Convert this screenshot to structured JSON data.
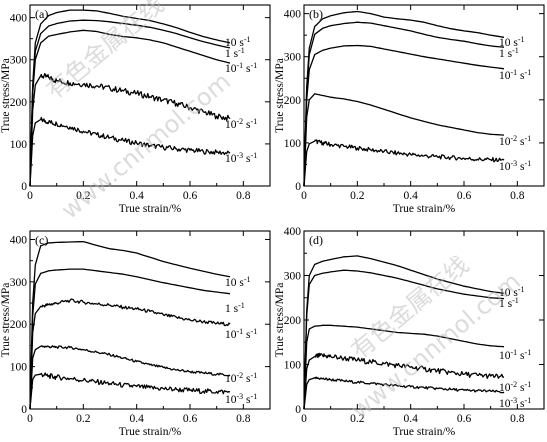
{
  "chart_data": [
    {
      "type": "line",
      "panel_label": "(a)",
      "xlabel": "True strain/%",
      "ylabel": "True stress/MPa",
      "xlim": [
        0,
        0.9
      ],
      "ylim": [
        0,
        430
      ],
      "xticks": [
        "0",
        "0.2",
        "0.4",
        "0.6",
        "0.8"
      ],
      "yticks": [
        "0",
        "100",
        "200",
        "300",
        "400"
      ],
      "series": [
        {
          "name": "10 s⁻¹",
          "label_base": "10 s",
          "label_exp": "-1",
          "serration": 0,
          "x": [
            0,
            0.01,
            0.02,
            0.04,
            0.07,
            0.1,
            0.15,
            0.2,
            0.25,
            0.3,
            0.35,
            0.4,
            0.45,
            0.5,
            0.55,
            0.6,
            0.65,
            0.7,
            0.75
          ],
          "y": [
            0,
            240,
            340,
            385,
            405,
            412,
            418,
            418,
            416,
            410,
            403,
            398,
            393,
            385,
            376,
            365,
            355,
            347,
            340
          ]
        },
        {
          "name": "1 s⁻¹",
          "label_base": "1 s",
          "label_exp": "-1",
          "serration": 0,
          "x": [
            0,
            0.01,
            0.02,
            0.04,
            0.07,
            0.1,
            0.15,
            0.2,
            0.25,
            0.3,
            0.35,
            0.4,
            0.45,
            0.5,
            0.55,
            0.6,
            0.65,
            0.7,
            0.75
          ],
          "y": [
            0,
            230,
            320,
            362,
            380,
            386,
            392,
            394,
            393,
            390,
            386,
            382,
            377,
            370,
            362,
            352,
            343,
            335,
            328
          ]
        },
        {
          "name": "10⁻¹ s⁻¹",
          "label_base": "10",
          "label_exp": "-1",
          "label_unit": " s",
          "label_exp2": "-1",
          "serration": 0,
          "x": [
            0,
            0.01,
            0.02,
            0.04,
            0.07,
            0.1,
            0.15,
            0.2,
            0.25,
            0.3,
            0.35,
            0.4,
            0.45,
            0.5,
            0.55,
            0.6,
            0.65,
            0.7,
            0.75
          ],
          "y": [
            0,
            220,
            300,
            340,
            356,
            360,
            366,
            370,
            367,
            360,
            355,
            352,
            347,
            340,
            330,
            320,
            310,
            300,
            292
          ]
        },
        {
          "name": "10⁻² s⁻¹",
          "label_base": "10",
          "label_exp": "-2",
          "label_unit": " s",
          "label_exp2": "-1",
          "serration": 7,
          "x": [
            0,
            0.01,
            0.02,
            0.04,
            0.07,
            0.1,
            0.15,
            0.2,
            0.25,
            0.3,
            0.35,
            0.4,
            0.45,
            0.5,
            0.55,
            0.6,
            0.65,
            0.7,
            0.75
          ],
          "y": [
            0,
            180,
            240,
            262,
            258,
            250,
            245,
            242,
            238,
            232,
            226,
            220,
            212,
            204,
            196,
            186,
            176,
            166,
            160
          ]
        },
        {
          "name": "10⁻³ s⁻¹",
          "label_base": "10",
          "label_exp": "-3",
          "label_unit": " s",
          "label_exp2": "-1",
          "serration": 6,
          "x": [
            0,
            0.01,
            0.02,
            0.04,
            0.07,
            0.1,
            0.15,
            0.2,
            0.25,
            0.3,
            0.35,
            0.4,
            0.45,
            0.5,
            0.55,
            0.6,
            0.65,
            0.7,
            0.75
          ],
          "y": [
            0,
            120,
            150,
            158,
            152,
            148,
            140,
            130,
            122,
            115,
            108,
            102,
            96,
            92,
            88,
            85,
            82,
            80,
            78
          ]
        }
      ]
    },
    {
      "type": "line",
      "panel_label": "(b)",
      "xlabel": "True strain/%",
      "ylabel": "True stress/MPa",
      "xlim": [
        0,
        0.9
      ],
      "ylim": [
        0,
        420
      ],
      "xticks": [
        "0",
        "0.2",
        "0.4",
        "0.6",
        "0.8"
      ],
      "yticks": [
        "0",
        "100",
        "200",
        "300",
        "400"
      ],
      "series": [
        {
          "name": "10 s⁻¹",
          "label_base": "10 s",
          "label_exp": "-1",
          "serration": 0,
          "x": [
            0,
            0.01,
            0.02,
            0.04,
            0.07,
            0.1,
            0.15,
            0.2,
            0.25,
            0.3,
            0.35,
            0.4,
            0.45,
            0.5,
            0.55,
            0.6,
            0.65,
            0.7,
            0.75
          ],
          "y": [
            0,
            230,
            320,
            370,
            388,
            395,
            402,
            405,
            400,
            392,
            388,
            385,
            380,
            372,
            365,
            360,
            356,
            350,
            345
          ]
        },
        {
          "name": "1 s⁻¹",
          "label_base": "1 s",
          "label_exp": "-1",
          "serration": 0,
          "x": [
            0,
            0.01,
            0.02,
            0.04,
            0.07,
            0.1,
            0.15,
            0.2,
            0.25,
            0.3,
            0.35,
            0.4,
            0.45,
            0.5,
            0.55,
            0.6,
            0.65,
            0.7,
            0.75
          ],
          "y": [
            0,
            220,
            305,
            352,
            366,
            372,
            377,
            380,
            378,
            372,
            366,
            360,
            352,
            345,
            340,
            336,
            330,
            325,
            322
          ]
        },
        {
          "name": "10⁻¹ s⁻¹",
          "label_base": "10",
          "label_exp": "-1",
          "label_unit": " s",
          "label_exp2": "-1",
          "serration": 0,
          "x": [
            0,
            0.01,
            0.02,
            0.04,
            0.07,
            0.1,
            0.15,
            0.2,
            0.25,
            0.3,
            0.35,
            0.4,
            0.45,
            0.5,
            0.55,
            0.6,
            0.65,
            0.7,
            0.75
          ],
          "y": [
            0,
            200,
            270,
            305,
            315,
            320,
            325,
            326,
            324,
            318,
            312,
            306,
            300,
            295,
            290,
            285,
            280,
            276,
            272
          ]
        },
        {
          "name": "10⁻² s⁻¹",
          "label_base": "10",
          "label_exp": "-2",
          "label_unit": " s",
          "label_exp2": "-1",
          "serration": 0,
          "x": [
            0,
            0.01,
            0.02,
            0.04,
            0.07,
            0.1,
            0.15,
            0.2,
            0.25,
            0.3,
            0.35,
            0.4,
            0.45,
            0.5,
            0.55,
            0.6,
            0.65,
            0.7,
            0.75
          ],
          "y": [
            0,
            160,
            200,
            214,
            210,
            206,
            202,
            196,
            188,
            178,
            168,
            158,
            150,
            142,
            136,
            130,
            124,
            120,
            118
          ]
        },
        {
          "name": "10⁻³ s⁻¹",
          "label_base": "10",
          "label_exp": "-3",
          "label_unit": " s",
          "label_exp2": "-1",
          "serration": 5,
          "x": [
            0,
            0.01,
            0.02,
            0.04,
            0.07,
            0.1,
            0.15,
            0.2,
            0.25,
            0.3,
            0.35,
            0.4,
            0.45,
            0.5,
            0.55,
            0.6,
            0.65,
            0.7,
            0.75
          ],
          "y": [
            0,
            80,
            98,
            104,
            100,
            96,
            92,
            88,
            84,
            80,
            76,
            73,
            70,
            68,
            66,
            64,
            62,
            61,
            60
          ]
        }
      ]
    },
    {
      "type": "line",
      "panel_label": "(c)",
      "xlabel": "True strain/%",
      "ylabel": "True stress/MPa",
      "xlim": [
        0,
        0.9
      ],
      "ylim": [
        0,
        420
      ],
      "xticks": [
        "0",
        "0.2",
        "0.4",
        "0.6",
        "0.8"
      ],
      "yticks": [
        "0",
        "100",
        "200",
        "300",
        "400"
      ],
      "series": [
        {
          "name": "10 s⁻¹",
          "label_base": "10 s",
          "label_exp": "-1",
          "serration": 0,
          "x": [
            0,
            0.01,
            0.02,
            0.04,
            0.07,
            0.1,
            0.15,
            0.2,
            0.25,
            0.3,
            0.35,
            0.4,
            0.45,
            0.5,
            0.55,
            0.6,
            0.65,
            0.7,
            0.75
          ],
          "y": [
            0,
            250,
            340,
            385,
            392,
            393,
            394,
            395,
            386,
            378,
            374,
            368,
            358,
            348,
            340,
            332,
            325,
            318,
            312
          ]
        },
        {
          "name": "1 s⁻¹",
          "label_base": "1 s",
          "label_exp": "-1",
          "serration": 0,
          "x": [
            0,
            0.01,
            0.02,
            0.04,
            0.07,
            0.1,
            0.15,
            0.2,
            0.25,
            0.3,
            0.35,
            0.4,
            0.45,
            0.5,
            0.55,
            0.6,
            0.65,
            0.7,
            0.75
          ],
          "y": [
            0,
            220,
            295,
            320,
            326,
            328,
            330,
            330,
            326,
            322,
            318,
            312,
            305,
            298,
            292,
            286,
            280,
            276,
            272
          ]
        },
        {
          "name": "10⁻¹ s⁻¹",
          "label_base": "10",
          "label_exp": "-1",
          "label_unit": " s",
          "label_exp2": "-1",
          "serration": 4,
          "x": [
            0,
            0.01,
            0.02,
            0.04,
            0.07,
            0.1,
            0.15,
            0.2,
            0.25,
            0.3,
            0.35,
            0.4,
            0.45,
            0.5,
            0.55,
            0.6,
            0.65,
            0.7,
            0.75
          ],
          "y": [
            0,
            180,
            225,
            242,
            246,
            250,
            256,
            252,
            248,
            245,
            240,
            236,
            230,
            222,
            216,
            210,
            206,
            202,
            200
          ]
        },
        {
          "name": "10⁻² s⁻¹",
          "label_base": "10",
          "label_exp": "-2",
          "label_unit": " s",
          "label_exp2": "-1",
          "serration": 3,
          "x": [
            0,
            0.01,
            0.02,
            0.04,
            0.07,
            0.1,
            0.15,
            0.2,
            0.25,
            0.3,
            0.35,
            0.4,
            0.45,
            0.5,
            0.55,
            0.6,
            0.65,
            0.7,
            0.75
          ],
          "y": [
            0,
            120,
            140,
            148,
            147,
            146,
            145,
            140,
            134,
            128,
            120,
            112,
            104,
            98,
            92,
            88,
            85,
            82,
            80
          ]
        },
        {
          "name": "10⁻³ s⁻¹",
          "label_base": "10",
          "label_exp": "-3",
          "label_unit": " s",
          "label_exp2": "-1",
          "serration": 6,
          "x": [
            0,
            0.01,
            0.02,
            0.04,
            0.07,
            0.1,
            0.15,
            0.2,
            0.25,
            0.3,
            0.35,
            0.4,
            0.45,
            0.5,
            0.55,
            0.6,
            0.65,
            0.7,
            0.75
          ],
          "y": [
            0,
            70,
            80,
            82,
            78,
            75,
            72,
            68,
            64,
            60,
            56,
            53,
            50,
            48,
            46,
            44,
            42,
            41,
            40
          ]
        }
      ]
    },
    {
      "type": "line",
      "panel_label": "(d)",
      "xlabel": "True strain/%",
      "ylabel": "True stress/MPa",
      "xlim": [
        0,
        0.9
      ],
      "ylim": [
        0,
        400
      ],
      "xticks": [
        "0",
        "0.2",
        "0.4",
        "0.6",
        "0.8"
      ],
      "yticks": [
        "0",
        "100",
        "200",
        "300",
        "400"
      ],
      "series": [
        {
          "name": "10 s⁻¹",
          "label_base": "10 s",
          "label_exp": "-1",
          "serration": 0,
          "x": [
            0,
            0.01,
            0.02,
            0.04,
            0.07,
            0.1,
            0.15,
            0.2,
            0.25,
            0.3,
            0.35,
            0.4,
            0.45,
            0.5,
            0.55,
            0.6,
            0.65,
            0.7,
            0.75
          ],
          "y": [
            0,
            220,
            300,
            325,
            332,
            336,
            342,
            344,
            338,
            330,
            322,
            312,
            302,
            292,
            284,
            276,
            270,
            264,
            260
          ]
        },
        {
          "name": "1 s⁻¹",
          "label_base": "1 s",
          "label_exp": "-1",
          "serration": 0,
          "x": [
            0,
            0.01,
            0.02,
            0.04,
            0.07,
            0.1,
            0.15,
            0.2,
            0.25,
            0.3,
            0.35,
            0.4,
            0.45,
            0.5,
            0.55,
            0.6,
            0.65,
            0.7,
            0.75
          ],
          "y": [
            0,
            210,
            280,
            300,
            305,
            308,
            312,
            310,
            306,
            300,
            294,
            286,
            278,
            270,
            264,
            258,
            254,
            250,
            248
          ]
        },
        {
          "name": "10⁻¹ s⁻¹",
          "label_base": "10",
          "label_exp": "-1",
          "label_unit": " s",
          "label_exp2": "-1",
          "serration": 0,
          "x": [
            0,
            0.01,
            0.02,
            0.04,
            0.07,
            0.1,
            0.15,
            0.2,
            0.25,
            0.3,
            0.35,
            0.4,
            0.45,
            0.5,
            0.55,
            0.6,
            0.65,
            0.7,
            0.75
          ],
          "y": [
            0,
            150,
            180,
            186,
            188,
            188,
            186,
            184,
            180,
            176,
            172,
            170,
            168,
            164,
            158,
            152,
            146,
            142,
            140
          ]
        },
        {
          "name": "10⁻² s⁻¹",
          "label_base": "10",
          "label_exp": "-2",
          "label_unit": " s",
          "label_exp2": "-1",
          "serration": 6,
          "x": [
            0,
            0.01,
            0.02,
            0.04,
            0.07,
            0.1,
            0.15,
            0.2,
            0.25,
            0.3,
            0.35,
            0.4,
            0.45,
            0.5,
            0.55,
            0.6,
            0.65,
            0.7,
            0.75
          ],
          "y": [
            0,
            90,
            110,
            118,
            120,
            118,
            114,
            110,
            106,
            102,
            98,
            94,
            90,
            86,
            82,
            78,
            76,
            74,
            72
          ]
        },
        {
          "name": "10⁻³ s⁻¹",
          "label_base": "10",
          "label_exp": "-3",
          "label_unit": " s",
          "label_exp2": "-1",
          "serration": 3,
          "x": [
            0,
            0.01,
            0.02,
            0.04,
            0.07,
            0.1,
            0.15,
            0.2,
            0.25,
            0.3,
            0.35,
            0.4,
            0.45,
            0.5,
            0.55,
            0.6,
            0.65,
            0.7,
            0.75
          ],
          "y": [
            0,
            55,
            66,
            70,
            68,
            66,
            63,
            60,
            58,
            55,
            52,
            50,
            48,
            46,
            44,
            42,
            41,
            40,
            38
          ]
        }
      ]
    }
  ],
  "watermarks": [
    {
      "text": "有色金属在线"
    },
    {
      "text": "www.cnnmol.com"
    }
  ]
}
